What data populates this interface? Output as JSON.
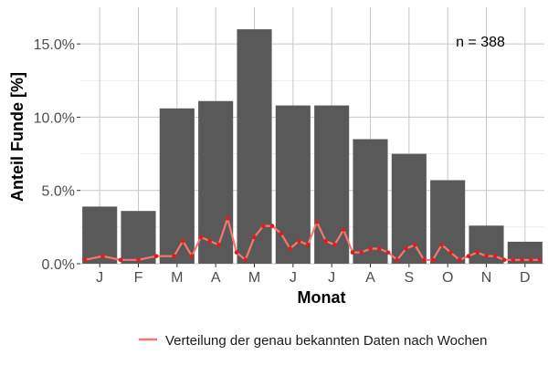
{
  "chart_data": {
    "type": "bar",
    "xlabel": "Monat",
    "ylabel": "Anteil Funde [%]",
    "annotation": "n = 388",
    "ylim": [
      0,
      17.5
    ],
    "y_tick_labels": [
      "0.0%",
      "5.0%",
      "10.0%",
      "15.0%"
    ],
    "categories": [
      "J",
      "F",
      "M",
      "A",
      "M",
      "J",
      "J",
      "A",
      "S",
      "O",
      "N",
      "D"
    ],
    "bar_color": "#595959",
    "series": [
      {
        "type": "bar",
        "values": [
          3.9,
          3.6,
          10.6,
          11.1,
          16.0,
          10.8,
          10.8,
          8.5,
          7.5,
          5.7,
          2.6,
          1.5
        ]
      },
      {
        "type": "line",
        "name": "Verteilung der genau bekannten Daten nach Wochen",
        "color": "#F8766D",
        "point_color": "#E41A1C",
        "x_unit": "week",
        "x": [
          1,
          3,
          5,
          7,
          9,
          11,
          12,
          13,
          14,
          15,
          16,
          17,
          18,
          19,
          20,
          21,
          22,
          23,
          24,
          25,
          26,
          27,
          28,
          29,
          30,
          31,
          32,
          33,
          34,
          35,
          36,
          37,
          38,
          39,
          40,
          41,
          42,
          43,
          44,
          45,
          46,
          47,
          48,
          49,
          50,
          51,
          52
        ],
        "values": [
          0.26,
          0.52,
          0.26,
          0.26,
          0.52,
          0.52,
          1.55,
          0.52,
          1.81,
          1.55,
          1.29,
          3.09,
          0.77,
          0.26,
          1.81,
          2.58,
          2.58,
          2.06,
          1.03,
          1.55,
          1.29,
          2.84,
          1.55,
          1.29,
          2.32,
          0.77,
          0.77,
          1.03,
          1.03,
          0.77,
          0.26,
          1.03,
          1.29,
          0.26,
          0.26,
          1.29,
          0.77,
          0.26,
          0.52,
          0.77,
          0.52,
          0.52,
          0.26,
          0.26,
          0.26,
          0.26,
          0.26
        ]
      }
    ],
    "legend_position": "bottom",
    "grid": true
  }
}
